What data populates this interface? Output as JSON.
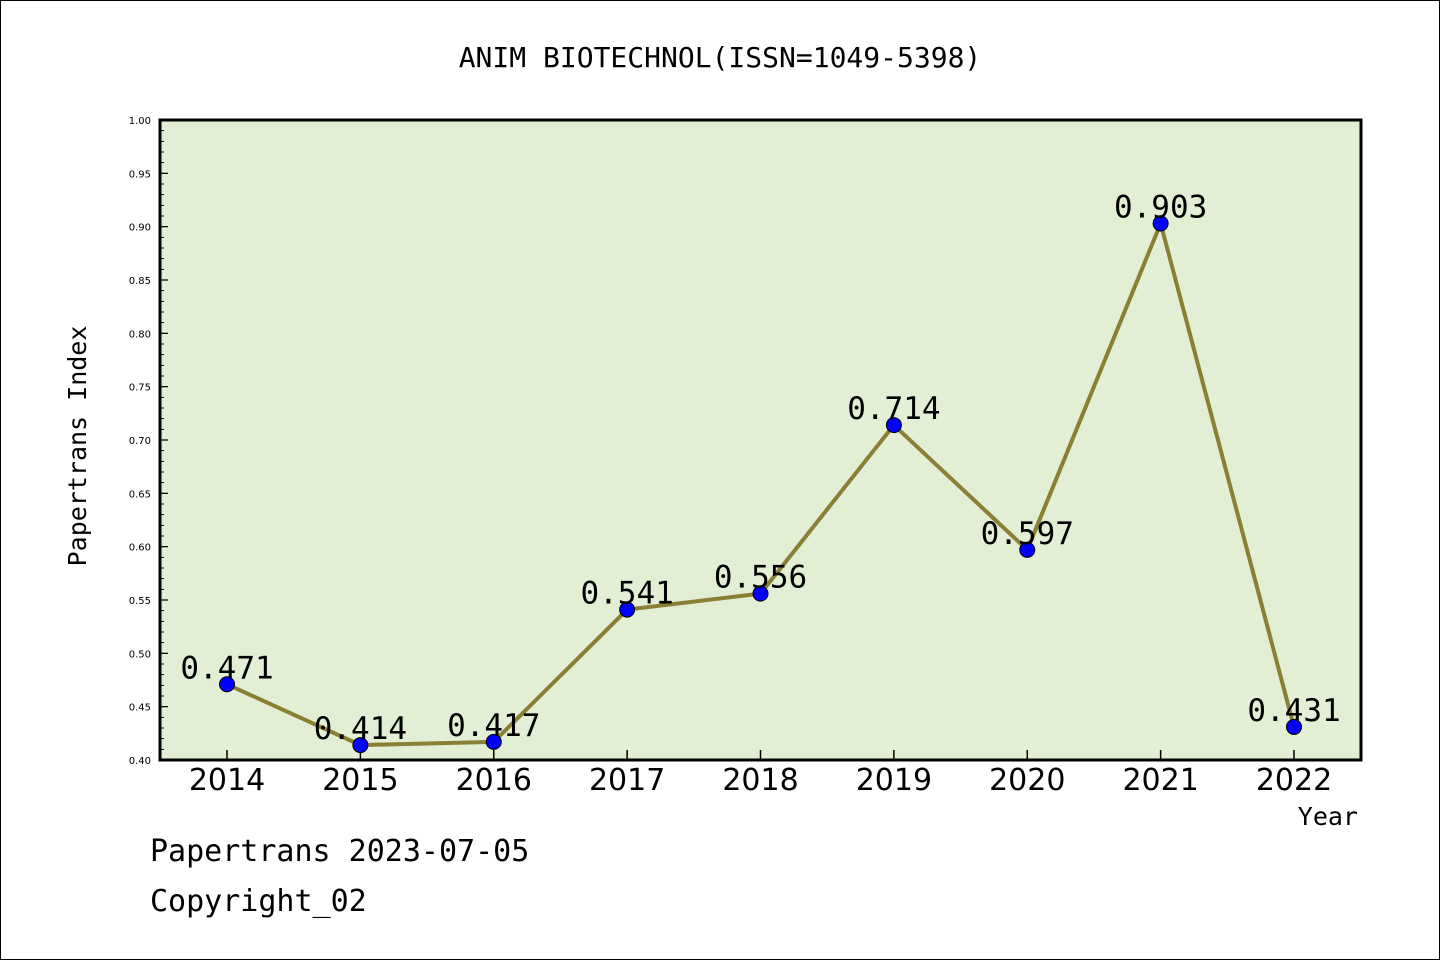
{
  "chart_data": {
    "type": "line",
    "title": "ANIM BIOTECHNOL(ISSN=1049-5398)",
    "xlabel": "Year",
    "ylabel": "Papertrans Index",
    "categories": [
      "2014",
      "2015",
      "2016",
      "2017",
      "2018",
      "2019",
      "2020",
      "2021",
      "2022"
    ],
    "series": [
      {
        "values": [
          0.471,
          0.414,
          0.417,
          0.541,
          0.556,
          0.714,
          0.597,
          0.903,
          0.431
        ]
      }
    ],
    "data_labels": [
      "0.471",
      "0.414",
      "0.417",
      "0.541",
      "0.556",
      "0.714",
      "0.597",
      "0.903",
      "0.431"
    ],
    "ylim": [
      0.4,
      1.0
    ],
    "yticks": [
      "0.40",
      "0.45",
      "0.50",
      "0.55",
      "0.60",
      "0.65",
      "0.70",
      "0.75",
      "0.80",
      "0.85",
      "0.90",
      "0.95",
      "1.00"
    ],
    "grid": false,
    "legend": "none",
    "colors": {
      "plot_background": "#e2efd5",
      "line": "#8b7f35",
      "marker": "#0000ff"
    }
  },
  "footer": {
    "date_text": "Papertrans 2023-07-05",
    "copyright_text": "Copyright_02"
  }
}
